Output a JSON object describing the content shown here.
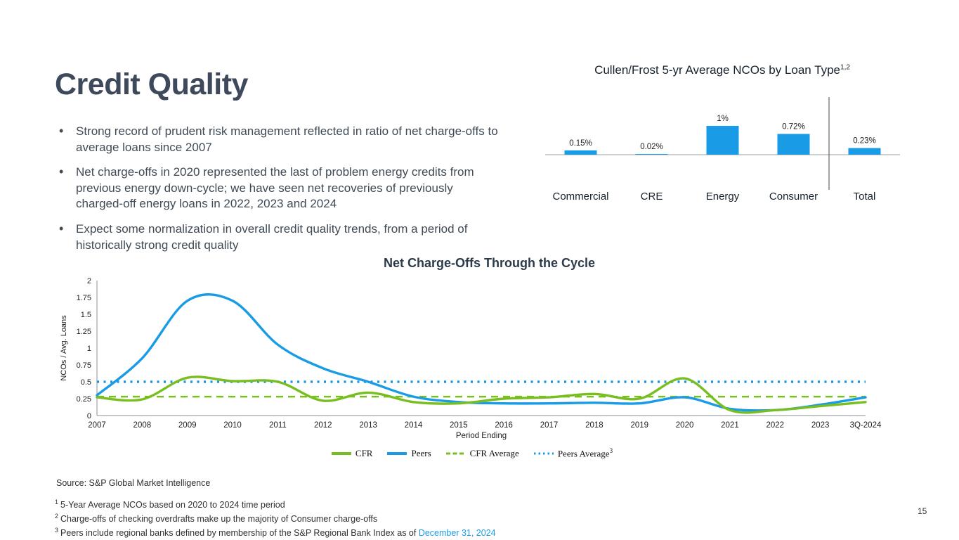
{
  "slide": {
    "title": "Credit Quality",
    "bullets": [
      "Strong record of prudent risk management reflected in ratio of net charge-offs to average loans since 2007",
      "Net charge-offs in 2020 represented the last of problem energy credits from previous energy down-cycle; we have seen net recoveries of previously charged-off energy loans in 2022, 2023 and 2024",
      "Expect some normalization in overall credit quality trends, from a period of historically strong credit quality"
    ],
    "source": "Source: S&P Global Market Intelligence",
    "footnotes": [
      {
        "sup": "1",
        "text": "5-Year Average NCOs based on 2020 to 2024 time period"
      },
      {
        "sup": "2",
        "text": "Charge-offs of checking overdrafts make up the majority of Consumer charge-offs"
      },
      {
        "sup": "3",
        "text": "Peers include regional banks defined by membership of the S&P Regional Bank Index as of ",
        "highlight": "December 31, 2024"
      }
    ],
    "page_number": "15"
  },
  "colors": {
    "accent_blue": "#1a9be6",
    "accent_green": "#78be20",
    "title_navy": "#3e4a5b",
    "axis_gray": "#9aa0a6",
    "text_dark": "#1c1c1c"
  },
  "chart_data": [
    {
      "type": "bar",
      "title": "Cullen/Frost 5-yr Average NCOs by Loan Type",
      "title_sup": "1,2",
      "categories": [
        "Commercial",
        "CRE",
        "Energy",
        "Consumer",
        "Total"
      ],
      "values": [
        0.15,
        0.02,
        1.0,
        0.72,
        0.23
      ],
      "value_labels": [
        "0.15%",
        "0.02%",
        "1%",
        "0.72%",
        "0.23%"
      ],
      "bar_color": "#1a9be6",
      "axis_color": "#9aa0a6",
      "separator_before_index": 4,
      "ylim": [
        0,
        1.15
      ],
      "grid": false
    },
    {
      "type": "line",
      "title": "Net Charge-Offs Through the Cycle",
      "xlabel": "Period Ending",
      "ylabel": "NCOs / Avg. Loans",
      "categories": [
        "2007",
        "2008",
        "2009",
        "2010",
        "2011",
        "2012",
        "2013",
        "2014",
        "2015",
        "2016",
        "2017",
        "2018",
        "2019",
        "2020",
        "2021",
        "2022",
        "2023",
        "3Q-2024"
      ],
      "yticks": [
        0,
        0.25,
        0.5,
        0.75,
        1,
        1.25,
        1.5,
        1.75,
        2
      ],
      "ylim": [
        0,
        2
      ],
      "grid": false,
      "legend_position": "bottom",
      "series": [
        {
          "name": "CFR",
          "color": "#78be20",
          "style": "solid",
          "values": [
            0.27,
            0.24,
            0.56,
            0.51,
            0.5,
            0.22,
            0.34,
            0.2,
            0.18,
            0.25,
            0.27,
            0.32,
            0.25,
            0.55,
            0.08,
            0.08,
            0.14,
            0.2
          ]
        },
        {
          "name": "Peers",
          "color": "#1a9be6",
          "style": "solid",
          "values": [
            0.3,
            0.85,
            1.7,
            1.7,
            1.05,
            0.7,
            0.5,
            0.28,
            0.2,
            0.18,
            0.18,
            0.19,
            0.18,
            0.27,
            0.1,
            0.08,
            0.16,
            0.27
          ]
        },
        {
          "name": "CFR Average",
          "color": "#78be20",
          "style": "dashed",
          "value": 0.28
        },
        {
          "name": "Peers Average",
          "color": "#1a9be6",
          "style": "dotted",
          "value": 0.5,
          "sup": "3"
        }
      ]
    }
  ]
}
